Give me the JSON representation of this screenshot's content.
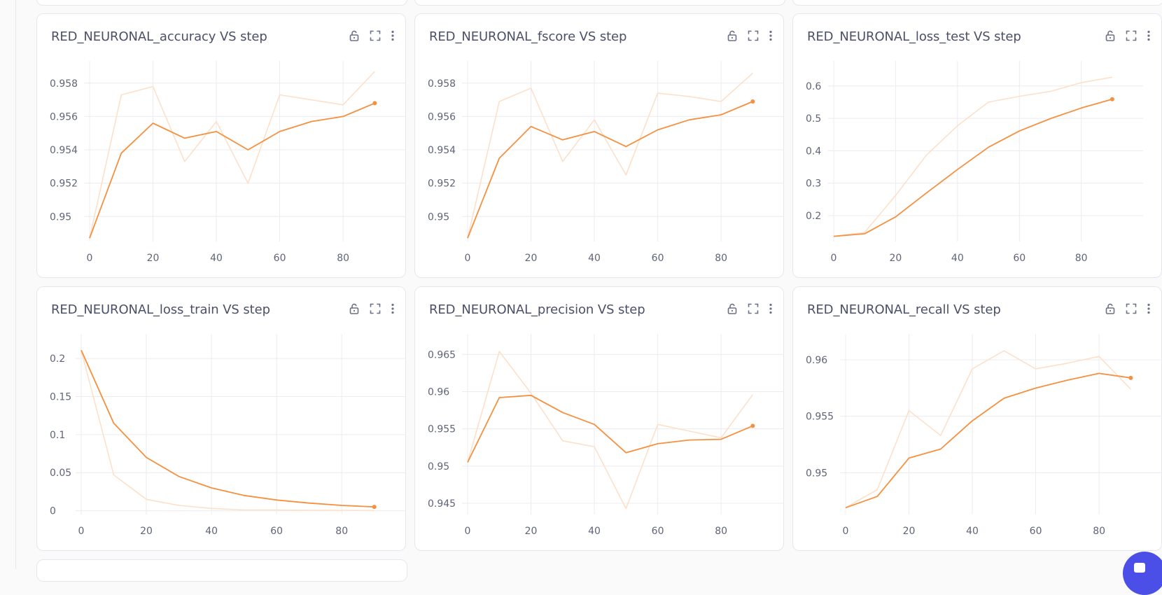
{
  "colors": {
    "accent": "#f5903f",
    "raw_line": "#fde0c9",
    "grid": "#ececf0"
  },
  "icons": {
    "lock": "lock-icon",
    "expand": "expand-icon",
    "menu": "more-vertical-icon"
  },
  "cards": [
    {
      "title": "RED_NEURONAL_accuracy VS step",
      "chart_data": {
        "type": "line",
        "x": [
          0,
          10,
          20,
          30,
          40,
          50,
          60,
          70,
          80,
          90
        ],
        "series": [
          {
            "values": [
              0.9487,
              0.9573,
              0.9578,
              0.9533,
              0.9557,
              0.952,
              0.9573,
              0.957,
              0.9567,
              0.9587
            ]
          },
          {
            "values": [
              0.9487,
              0.9538,
              0.9556,
              0.9547,
              0.9551,
              0.954,
              0.9551,
              0.9557,
              0.956,
              0.9568
            ]
          }
        ],
        "xticks": [
          0,
          20,
          40,
          60,
          80
        ],
        "yticks": [
          0.95,
          0.952,
          0.954,
          0.956,
          0.958
        ],
        "ytick_labels": [
          "0.95",
          "0.952",
          "0.954",
          "0.956",
          "0.958"
        ],
        "xlim": [
          0,
          95
        ],
        "ylim": [
          0.9485,
          0.959
        ]
      }
    },
    {
      "title": "RED_NEURONAL_fscore VS step",
      "chart_data": {
        "type": "line",
        "x": [
          0,
          10,
          20,
          30,
          40,
          50,
          60,
          70,
          80,
          90
        ],
        "series": [
          {
            "values": [
              0.9487,
              0.9569,
              0.9577,
              0.9533,
              0.9558,
              0.9525,
              0.9574,
              0.9572,
              0.9569,
              0.9586
            ]
          },
          {
            "values": [
              0.9487,
              0.9535,
              0.9554,
              0.9546,
              0.9551,
              0.9542,
              0.9552,
              0.9558,
              0.9561,
              0.9569
            ]
          }
        ],
        "xticks": [
          0,
          20,
          40,
          60,
          80
        ],
        "yticks": [
          0.95,
          0.952,
          0.954,
          0.956,
          0.958
        ],
        "ytick_labels": [
          "0.95",
          "0.952",
          "0.954",
          "0.956",
          "0.958"
        ],
        "xlim": [
          0,
          95
        ],
        "ylim": [
          0.9485,
          0.959
        ]
      }
    },
    {
      "title": "RED_NEURONAL_loss_test VS step",
      "chart_data": {
        "type": "line",
        "x": [
          0,
          10,
          20,
          30,
          40,
          50,
          60,
          70,
          80,
          90
        ],
        "series": [
          {
            "values": [
              0.136,
              0.148,
              0.262,
              0.387,
              0.477,
              0.55,
              0.568,
              0.583,
              0.61,
              0.627
            ]
          },
          {
            "values": [
              0.136,
              0.144,
              0.196,
              0.27,
              0.342,
              0.411,
              0.461,
              0.499,
              0.532,
              0.559
            ]
          }
        ],
        "xticks": [
          0,
          20,
          40,
          60,
          80
        ],
        "yticks": [
          0.2,
          0.3,
          0.4,
          0.5,
          0.6
        ],
        "ytick_labels": [
          "0.2",
          "0.3",
          "0.4",
          "0.5",
          "0.6"
        ],
        "xlim": [
          0,
          95
        ],
        "ylim": [
          0.12,
          0.66
        ]
      }
    },
    {
      "title": "RED_NEURONAL_loss_train VS step",
      "chart_data": {
        "type": "line",
        "x": [
          0,
          10,
          20,
          30,
          40,
          50,
          60,
          70,
          80,
          90
        ],
        "series": [
          {
            "values": [
              0.211,
              0.047,
              0.015,
              0.007,
              0.003,
              0.001,
              0.001,
              0.0005,
              0.0003,
              0.0002
            ]
          },
          {
            "values": [
              0.211,
              0.115,
              0.07,
              0.045,
              0.03,
              0.02,
              0.014,
              0.01,
              0.007,
              0.005
            ]
          }
        ],
        "xticks": [
          0,
          20,
          40,
          60,
          80
        ],
        "yticks": [
          0,
          0.05,
          0.1,
          0.15,
          0.2
        ],
        "ytick_labels": [
          "0",
          "0.05",
          "0.1",
          "0.15",
          "0.2"
        ],
        "xlim": [
          0,
          95
        ],
        "ylim": [
          -0.005,
          0.225
        ]
      }
    },
    {
      "title": "RED_NEURONAL_precision VS step",
      "chart_data": {
        "type": "line",
        "x": [
          0,
          10,
          20,
          30,
          40,
          50,
          60,
          70,
          80,
          90
        ],
        "series": [
          {
            "values": [
              0.9505,
              0.9654,
              0.9598,
              0.9534,
              0.9526,
              0.9443,
              0.9556,
              0.9547,
              0.9538,
              0.9596
            ]
          },
          {
            "values": [
              0.9505,
              0.9592,
              0.9595,
              0.9572,
              0.9556,
              0.9518,
              0.953,
              0.9535,
              0.9536,
              0.9554
            ]
          }
        ],
        "xticks": [
          0,
          20,
          40,
          60,
          80
        ],
        "yticks": [
          0.945,
          0.95,
          0.955,
          0.96,
          0.965
        ],
        "ytick_labels": [
          "0.945",
          "0.95",
          "0.955",
          "0.96",
          "0.965"
        ],
        "xlim": [
          0,
          95
        ],
        "ylim": [
          0.9435,
          0.967
        ]
      }
    },
    {
      "title": "RED_NEURONAL_recall VS step",
      "chart_data": {
        "type": "line",
        "x": [
          0,
          10,
          20,
          30,
          40,
          50,
          60,
          70,
          80,
          90
        ],
        "series": [
          {
            "values": [
              0.9469,
              0.9485,
              0.9555,
              0.9533,
              0.9592,
              0.9608,
              0.9592,
              0.9597,
              0.9603,
              0.9574
            ]
          },
          {
            "values": [
              0.9469,
              0.9479,
              0.9513,
              0.9521,
              0.9546,
              0.9566,
              0.9575,
              0.9582,
              0.9588,
              0.9584
            ]
          }
        ],
        "xticks": [
          0,
          20,
          40,
          60,
          80
        ],
        "yticks": [
          0.95,
          0.955,
          0.96
        ],
        "ytick_labels": [
          "0.95",
          "0.955",
          "0.96"
        ],
        "xlim": [
          0,
          95
        ],
        "ylim": [
          0.9463,
          0.9618
        ]
      }
    }
  ]
}
